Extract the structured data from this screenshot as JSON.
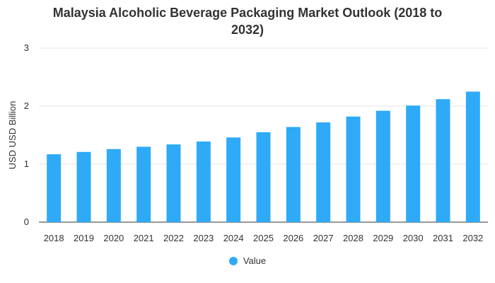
{
  "chart_data": {
    "type": "bar",
    "title_lines": [
      "Malaysia Alcoholic Beverage Packaging Market Outlook (2018 to",
      "2032)"
    ],
    "ylabel": "USD USD Billion",
    "xlabel": "",
    "categories": [
      "2018",
      "2019",
      "2020",
      "2021",
      "2022",
      "2023",
      "2024",
      "2025",
      "2026",
      "2027",
      "2028",
      "2029",
      "2030",
      "2031",
      "2032"
    ],
    "series": [
      {
        "name": "Value",
        "color": "#2eaaf7",
        "values": [
          1.17,
          1.21,
          1.26,
          1.3,
          1.34,
          1.39,
          1.46,
          1.55,
          1.64,
          1.72,
          1.82,
          1.92,
          2.01,
          2.12,
          2.25
        ]
      }
    ],
    "ylim": [
      0,
      3
    ],
    "yticks": [
      "0",
      "1",
      "2",
      "3"
    ],
    "grid": true,
    "legend_position": "bottom-center"
  }
}
